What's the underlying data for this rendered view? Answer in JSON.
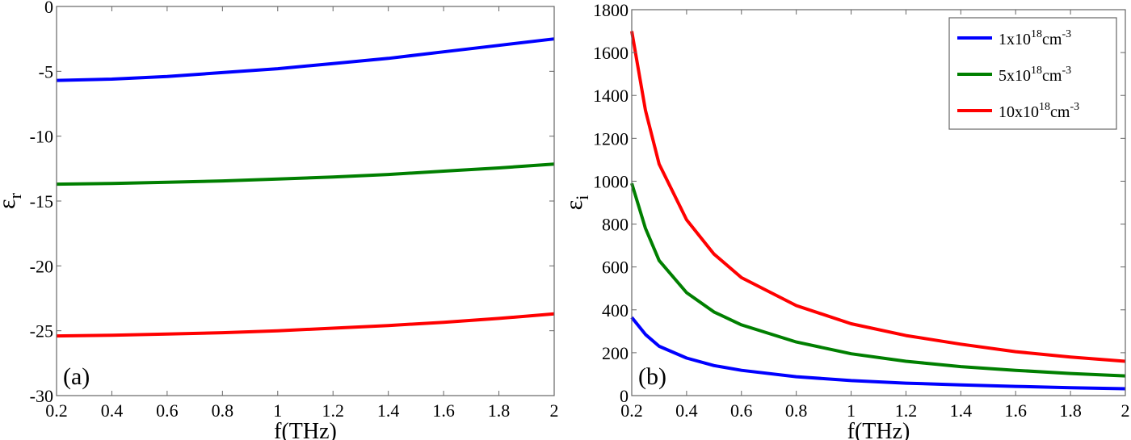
{
  "chart_data": [
    {
      "type": "line",
      "panel_label": "(a)",
      "xlabel": "f(THz)",
      "ylabel": "ε",
      "ylabel_sub": "r",
      "xlim": [
        0.2,
        2
      ],
      "ylim": [
        -30,
        0
      ],
      "xticks": [
        "0.2",
        "0.4",
        "0.6",
        "0.8",
        "1",
        "1.2",
        "1.4",
        "1.6",
        "1.8",
        "2"
      ],
      "yticks": [
        "0",
        "-5",
        "-10",
        "-15",
        "-20",
        "-25",
        "-30"
      ],
      "grid": false,
      "x": [
        0.2,
        0.4,
        0.6,
        0.8,
        1.0,
        1.2,
        1.4,
        1.6,
        1.8,
        2.0
      ],
      "series": [
        {
          "color": "#0000ff",
          "values": [
            -5.7,
            -5.6,
            -5.4,
            -5.1,
            -4.8,
            -4.4,
            -4.0,
            -3.5,
            -3.0,
            -2.5
          ]
        },
        {
          "color": "#007f00",
          "values": [
            -13.7,
            -13.65,
            -13.55,
            -13.45,
            -13.3,
            -13.15,
            -12.95,
            -12.7,
            -12.45,
            -12.15
          ]
        },
        {
          "color": "#ff0000",
          "values": [
            -25.4,
            -25.35,
            -25.25,
            -25.15,
            -25.0,
            -24.8,
            -24.6,
            -24.35,
            -24.05,
            -23.7
          ]
        }
      ]
    },
    {
      "type": "line",
      "panel_label": "(b)",
      "xlabel": "f(THz)",
      "ylabel": "ε",
      "ylabel_sub": "i",
      "xlim": [
        0.2,
        2
      ],
      "ylim": [
        0,
        1800
      ],
      "xticks": [
        "0.2",
        "0.4",
        "0.6",
        "0.8",
        "1",
        "1.2",
        "1.4",
        "1.6",
        "1.8",
        "2"
      ],
      "yticks": [
        "0",
        "200",
        "400",
        "600",
        "800",
        "1000",
        "1200",
        "1400",
        "1600",
        "1800"
      ],
      "grid": false,
      "legend": "top-right",
      "x": [
        0.2,
        0.25,
        0.3,
        0.4,
        0.5,
        0.6,
        0.8,
        1.0,
        1.2,
        1.4,
        1.6,
        1.8,
        2.0
      ],
      "series": [
        {
          "name": "1x10",
          "sup": "18",
          "unit": "cm",
          "unit_sup": "-3",
          "color": "#0000ff",
          "values": [
            365,
            285,
            230,
            175,
            140,
            118,
            88,
            70,
            58,
            50,
            43,
            37,
            32
          ]
        },
        {
          "name": "5x10",
          "sup": "18",
          "unit": "cm",
          "unit_sup": "-3",
          "color": "#007f00",
          "values": [
            990,
            780,
            630,
            480,
            390,
            330,
            250,
            195,
            160,
            135,
            118,
            103,
            92
          ]
        },
        {
          "name": "10x10",
          "sup": "18",
          "unit": "cm",
          "unit_sup": "-3",
          "color": "#ff0000",
          "values": [
            1700,
            1330,
            1080,
            820,
            660,
            550,
            420,
            335,
            280,
            240,
            205,
            180,
            160
          ]
        }
      ]
    }
  ]
}
